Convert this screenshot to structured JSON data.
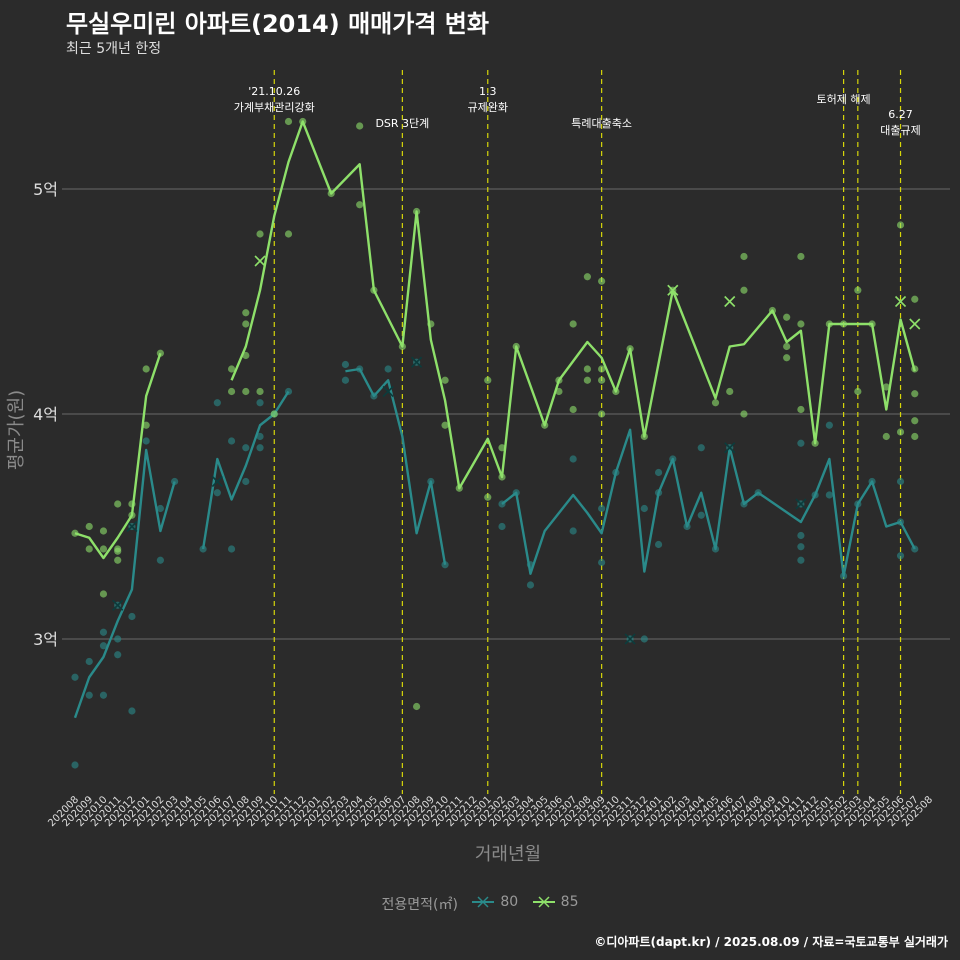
{
  "title": "무실우미린 아파트(2014) 매매가격 변화",
  "subtitle": "최근 5개년 한정",
  "caption": "©디아파트(dapt.kr) / 2025.08.09 / 자료=국토교통부 실거래가",
  "chart_data": {
    "type": "line",
    "xlabel": "거래년월",
    "ylabel": "평균가(원)",
    "ylim": [
      2.3,
      5.55
    ],
    "y_ticks": [
      {
        "value": 3,
        "label": "3억"
      },
      {
        "value": 4,
        "label": "4억"
      },
      {
        "value": 5,
        "label": "5억"
      }
    ],
    "x_categories": [
      "202008",
      "202009",
      "202010",
      "202011",
      "202012",
      "202101",
      "202102",
      "202103",
      "202104",
      "202105",
      "202106",
      "202107",
      "202108",
      "202109",
      "202110",
      "202111",
      "202112",
      "202201",
      "202202",
      "202203",
      "202204",
      "202205",
      "202206",
      "202207",
      "202208",
      "202209",
      "202210",
      "202211",
      "202212",
      "202301",
      "202302",
      "202303",
      "202304",
      "202305",
      "202306",
      "202307",
      "202308",
      "202309",
      "202310",
      "202311",
      "202312",
      "202401",
      "202402",
      "202403",
      "202404",
      "202405",
      "202406",
      "202407",
      "202408",
      "202409",
      "202410",
      "202411",
      "202412",
      "202501",
      "202502",
      "202503",
      "202504",
      "202505",
      "202506",
      "202507",
      "202508"
    ],
    "legend_title": "전용면적(㎡)",
    "legend_position": "bottom",
    "series": [
      {
        "name": "80",
        "color": "#2a8a8a",
        "line": [
          [
            "202008",
            2.65
          ],
          [
            "202009",
            2.83
          ],
          [
            "202010",
            2.92
          ],
          [
            "202011",
            3.08
          ],
          [
            "202012",
            3.22
          ],
          [
            "202101",
            3.84
          ],
          [
            "202102",
            3.48
          ],
          [
            "202103",
            3.7
          ],
          null,
          [
            "202105",
            3.4
          ],
          [
            "202106",
            3.8
          ],
          [
            "202107",
            3.62
          ],
          [
            "202108",
            3.77
          ],
          [
            "202109",
            3.95
          ],
          [
            "202110",
            4.0
          ],
          [
            "202111",
            4.1
          ],
          null,
          [
            "202203",
            4.19
          ],
          [
            "202204",
            4.2
          ],
          [
            "202205",
            4.08
          ],
          [
            "202206",
            4.15
          ],
          [
            "202207",
            3.9
          ],
          [
            "202208",
            3.47
          ],
          [
            "202209",
            3.7
          ],
          [
            "202210",
            3.33
          ]
        ],
        "line2": [
          [
            "202302",
            3.6
          ],
          [
            "202303",
            3.65
          ],
          [
            "202304",
            3.29
          ],
          [
            "202305",
            3.48
          ],
          [
            "202306",
            3.56
          ],
          [
            "202307",
            3.64
          ],
          [
            "202308",
            3.56
          ],
          [
            "202309",
            3.47
          ],
          [
            "202310",
            3.74
          ],
          [
            "202311",
            3.93
          ],
          [
            "202312",
            3.3
          ],
          [
            "202401",
            3.65
          ],
          [
            "202402",
            3.8
          ],
          [
            "202403",
            3.5
          ],
          [
            "202404",
            3.65
          ],
          [
            "202405",
            3.4
          ],
          [
            "202406",
            3.85
          ],
          [
            "202407",
            3.6
          ],
          [
            "202408",
            3.65
          ],
          [
            "202411",
            3.52
          ],
          [
            "202412",
            3.64
          ],
          [
            "202501",
            3.8
          ],
          [
            "202502",
            3.28
          ],
          [
            "202503",
            3.6
          ],
          [
            "202504",
            3.7
          ],
          [
            "202505",
            3.5
          ],
          [
            "202506",
            3.52
          ],
          [
            "202507",
            3.4
          ]
        ],
        "points": [
          [
            "202008",
            2.44
          ],
          [
            "202008",
            2.83
          ],
          [
            "202009",
            2.75
          ],
          [
            "202009",
            2.9
          ],
          [
            "202010",
            2.75
          ],
          [
            "202010",
            2.97
          ],
          [
            "202010",
            3.03
          ],
          [
            "202011",
            2.93
          ],
          [
            "202011",
            3.0
          ],
          [
            "202011",
            3.15
          ],
          [
            "202012",
            2.68
          ],
          [
            "202012",
            3.1
          ],
          [
            "202012",
            3.5
          ],
          [
            "202101",
            3.88
          ],
          [
            "202102",
            3.35
          ],
          [
            "202102",
            3.58
          ],
          [
            "202103",
            3.7
          ],
          [
            "202105",
            3.4
          ],
          [
            "202106",
            4.05
          ],
          [
            "202106",
            3.65
          ],
          [
            "202107",
            3.4
          ],
          [
            "202107",
            3.88
          ],
          [
            "202108",
            3.7
          ],
          [
            "202108",
            3.85
          ],
          [
            "202109",
            3.85
          ],
          [
            "202109",
            3.9
          ],
          [
            "202109",
            4.05
          ],
          [
            "202110",
            4.0
          ],
          [
            "202111",
            4.1
          ],
          [
            "202203",
            4.15
          ],
          [
            "202203",
            4.22
          ],
          [
            "202204",
            4.2
          ],
          [
            "202205",
            4.08
          ],
          [
            "202206",
            4.2
          ],
          [
            "202208",
            4.23
          ],
          [
            "202209",
            3.7
          ],
          [
            "202210",
            3.33
          ],
          [
            "202302",
            3.5
          ],
          [
            "202302",
            3.6
          ],
          [
            "202303",
            3.65
          ],
          [
            "202304",
            3.24
          ],
          [
            "202304",
            3.33
          ],
          [
            "202307",
            3.48
          ],
          [
            "202307",
            3.8
          ],
          [
            "202309",
            3.34
          ],
          [
            "202309",
            3.58
          ],
          [
            "202310",
            3.74
          ],
          [
            "202311",
            3.0
          ],
          [
            "202312",
            3.0
          ],
          [
            "202312",
            3.58
          ],
          [
            "202401",
            3.42
          ],
          [
            "202401",
            3.65
          ],
          [
            "202401",
            3.74
          ],
          [
            "202402",
            3.8
          ],
          [
            "202403",
            3.5
          ],
          [
            "202404",
            3.55
          ],
          [
            "202404",
            3.85
          ],
          [
            "202405",
            3.4
          ],
          [
            "202406",
            3.85
          ],
          [
            "202407",
            3.6
          ],
          [
            "202408",
            3.65
          ],
          [
            "202411",
            3.35
          ],
          [
            "202411",
            3.41
          ],
          [
            "202411",
            3.46
          ],
          [
            "202411",
            3.6
          ],
          [
            "202411",
            3.87
          ],
          [
            "202412",
            3.64
          ],
          [
            "202501",
            3.95
          ],
          [
            "202501",
            3.64
          ],
          [
            "202502",
            3.28
          ],
          [
            "202503",
            3.6
          ],
          [
            "202504",
            3.7
          ],
          [
            "202506",
            3.37
          ],
          [
            "202506",
            3.52
          ],
          [
            "202506",
            3.7
          ],
          [
            "202507",
            3.4
          ]
        ],
        "crosses": [
          [
            "202011",
            3.15
          ],
          [
            "202012",
            3.5
          ],
          [
            "202106",
            3.7
          ],
          [
            "202206",
            4.1
          ],
          [
            "202208",
            4.23
          ],
          [
            "202311",
            3.0
          ],
          [
            "202406",
            3.85
          ],
          [
            "202411",
            3.6
          ]
        ]
      },
      {
        "name": "85",
        "color": "#8ee06a",
        "line": [
          [
            "202008",
            3.47
          ],
          [
            "202009",
            3.45
          ],
          [
            "202010",
            3.36
          ],
          [
            "202011",
            3.45
          ],
          [
            "202012",
            3.55
          ],
          [
            "202101",
            4.08
          ],
          [
            "202102",
            4.27
          ],
          null,
          [
            "202107",
            4.15
          ],
          [
            "202108",
            4.3
          ],
          [
            "202109",
            4.55
          ],
          [
            "202110",
            4.88
          ],
          [
            "202111",
            5.12
          ],
          [
            "202112",
            5.3
          ],
          [
            "202202",
            4.98
          ],
          [
            "202204",
            5.11
          ],
          [
            "202205",
            4.55
          ],
          [
            "202207",
            4.3
          ],
          [
            "202208",
            4.9
          ],
          [
            "202209",
            4.33
          ],
          [
            "202210",
            4.06
          ],
          [
            "202211",
            3.67
          ],
          [
            "202301",
            3.89
          ],
          [
            "202302",
            3.72
          ],
          [
            "202303",
            4.3
          ],
          [
            "202305",
            3.95
          ],
          [
            "202306",
            4.15
          ],
          [
            "202308",
            4.32
          ],
          [
            "202309",
            4.25
          ],
          [
            "202310",
            4.1
          ],
          [
            "202311",
            4.29
          ],
          [
            "202312",
            3.9
          ],
          [
            "202402",
            4.55
          ],
          [
            "202405",
            4.07
          ],
          [
            "202406",
            4.3
          ],
          [
            "202407",
            4.31
          ],
          [
            "202409",
            4.46
          ],
          [
            "202410",
            4.32
          ],
          [
            "202411",
            4.37
          ],
          [
            "202412",
            3.87
          ],
          [
            "202501",
            4.4
          ],
          [
            "202502",
            4.4
          ],
          [
            "202504",
            4.4
          ],
          [
            "202505",
            4.02
          ],
          [
            "202506",
            4.42
          ],
          [
            "202507",
            4.19
          ]
        ],
        "points": [
          [
            "202008",
            3.47
          ],
          [
            "202009",
            3.4
          ],
          [
            "202009",
            3.5
          ],
          [
            "202010",
            3.2
          ],
          [
            "202010",
            3.4
          ],
          [
            "202010",
            3.48
          ],
          [
            "202011",
            3.35
          ],
          [
            "202011",
            3.39
          ],
          [
            "202011",
            3.4
          ],
          [
            "202011",
            3.6
          ],
          [
            "202012",
            3.55
          ],
          [
            "202012",
            3.6
          ],
          [
            "202101",
            3.95
          ],
          [
            "202101",
            4.2
          ],
          [
            "202102",
            4.27
          ],
          [
            "202107",
            4.1
          ],
          [
            "202107",
            4.2
          ],
          [
            "202108",
            4.1
          ],
          [
            "202108",
            4.26
          ],
          [
            "202108",
            4.4
          ],
          [
            "202108",
            4.45
          ],
          [
            "202109",
            4.1
          ],
          [
            "202109",
            4.8
          ],
          [
            "202110",
            4.0
          ],
          [
            "202111",
            4.8
          ],
          [
            "202111",
            5.3
          ],
          [
            "202112",
            5.3
          ],
          [
            "202202",
            4.98
          ],
          [
            "202204",
            4.93
          ],
          [
            "202204",
            5.28
          ],
          [
            "202205",
            4.55
          ],
          [
            "202207",
            4.3
          ],
          [
            "202208",
            2.7
          ],
          [
            "202208",
            4.9
          ],
          [
            "202209",
            4.4
          ],
          [
            "202210",
            4.15
          ],
          [
            "202210",
            3.95
          ],
          [
            "202211",
            3.67
          ],
          [
            "202301",
            3.63
          ],
          [
            "202301",
            4.15
          ],
          [
            "202302",
            3.72
          ],
          [
            "202302",
            3.85
          ],
          [
            "202303",
            4.3
          ],
          [
            "202305",
            3.95
          ],
          [
            "202306",
            4.1
          ],
          [
            "202306",
            4.15
          ],
          [
            "202307",
            4.02
          ],
          [
            "202307",
            4.4
          ],
          [
            "202308",
            4.15
          ],
          [
            "202308",
            4.2
          ],
          [
            "202308",
            4.61
          ],
          [
            "202309",
            4.0
          ],
          [
            "202309",
            4.15
          ],
          [
            "202309",
            4.2
          ],
          [
            "202309",
            4.59
          ],
          [
            "202310",
            4.1
          ],
          [
            "202311",
            4.29
          ],
          [
            "202312",
            3.9
          ],
          [
            "202402",
            4.55
          ],
          [
            "202405",
            4.05
          ],
          [
            "202406",
            4.1
          ],
          [
            "202407",
            4.0
          ],
          [
            "202407",
            4.55
          ],
          [
            "202407",
            4.7
          ],
          [
            "202409",
            4.46
          ],
          [
            "202410",
            4.25
          ],
          [
            "202410",
            4.3
          ],
          [
            "202410",
            4.43
          ],
          [
            "202411",
            4.02
          ],
          [
            "202411",
            4.4
          ],
          [
            "202411",
            4.7
          ],
          [
            "202412",
            3.87
          ],
          [
            "202501",
            4.4
          ],
          [
            "202502",
            4.4
          ],
          [
            "202503",
            4.1
          ],
          [
            "202503",
            4.55
          ],
          [
            "202504",
            4.4
          ],
          [
            "202505",
            3.9
          ],
          [
            "202505",
            4.12
          ],
          [
            "202506",
            3.92
          ],
          [
            "202506",
            4.84
          ],
          [
            "202507",
            3.9
          ],
          [
            "202507",
            3.97
          ],
          [
            "202507",
            4.09
          ],
          [
            "202507",
            4.2
          ],
          [
            "202507",
            4.51
          ]
        ],
        "crosses": [
          [
            "202109",
            4.68
          ],
          [
            "202402",
            4.55
          ],
          [
            "202406",
            4.5
          ],
          [
            "202506",
            4.5
          ],
          [
            "202507",
            4.4
          ]
        ]
      }
    ],
    "annotations": [
      {
        "x": "202110",
        "labels": [
          "'21.10.26",
          "가계부채관리강화"
        ]
      },
      {
        "x": "202207",
        "labels": [
          "DSR 3단계"
        ]
      },
      {
        "x": "202301",
        "labels": [
          "1.3",
          "규제완화"
        ]
      },
      {
        "x": "202309",
        "labels": [
          "특례대출축소"
        ]
      },
      {
        "x": "202502",
        "labels": [
          "토허제 해제"
        ]
      },
      {
        "x": "202503",
        "labels": []
      },
      {
        "x": "202506",
        "labels": [
          "6.27",
          "대출규제"
        ]
      }
    ]
  }
}
